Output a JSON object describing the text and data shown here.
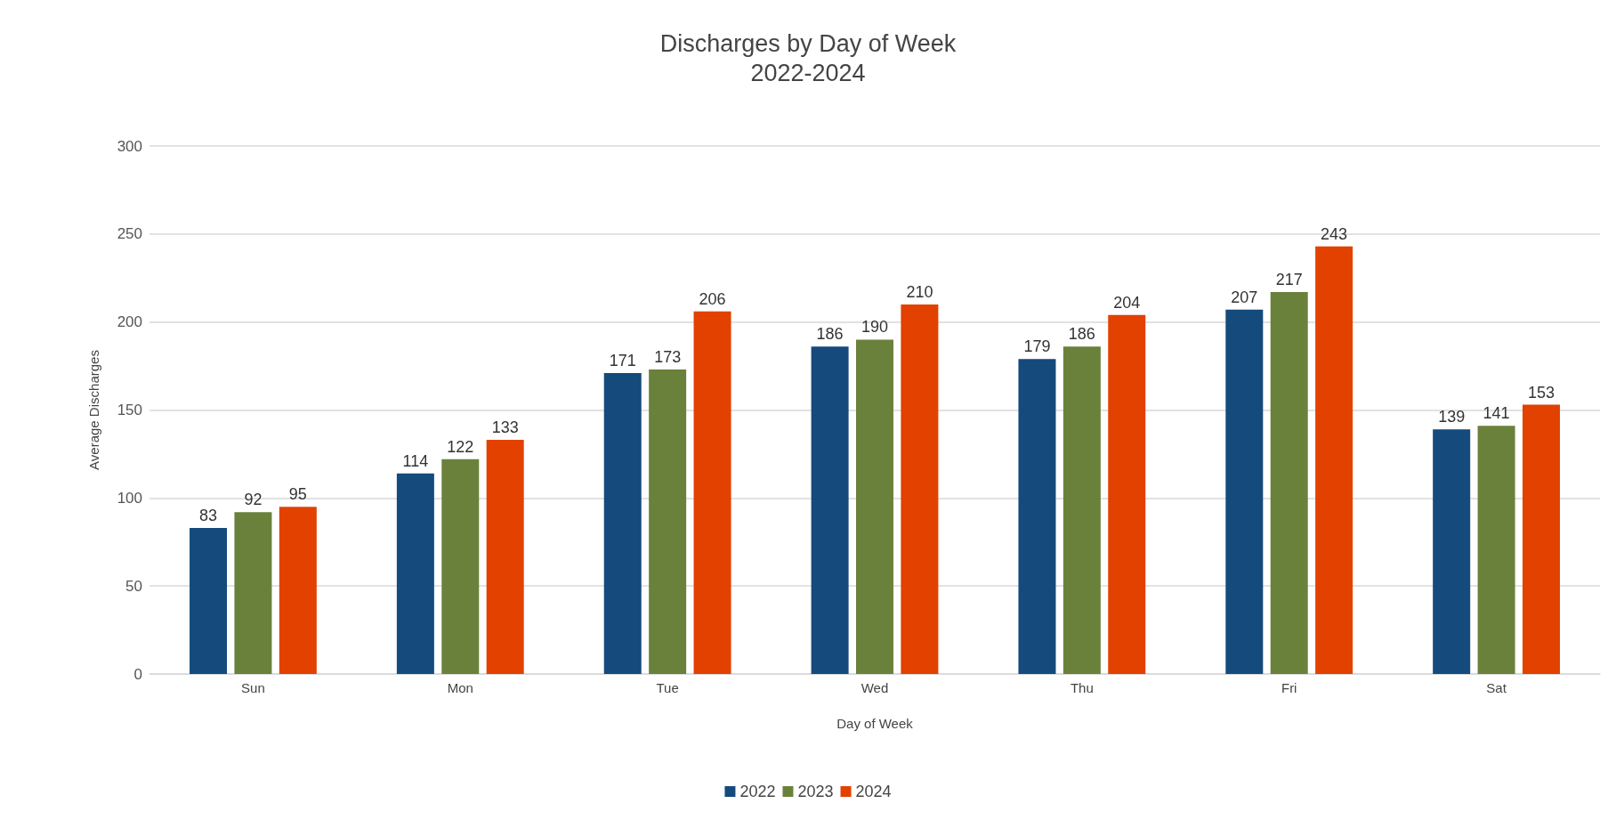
{
  "chart_data": {
    "type": "bar",
    "title": "Discharges by Day of Week",
    "subtitle": "2022-2024",
    "xlabel": "Day of Week",
    "ylabel": "Average Discharges",
    "categories": [
      "Sun",
      "Mon",
      "Tue",
      "Wed",
      "Thu",
      "Fri",
      "Sat"
    ],
    "series": [
      {
        "name": "2022",
        "color": "#154a7c",
        "values": [
          83,
          114,
          171,
          186,
          179,
          207,
          139
        ]
      },
      {
        "name": "2023",
        "color": "#6a813b",
        "values": [
          92,
          122,
          173,
          190,
          186,
          217,
          141
        ]
      },
      {
        "name": "2024",
        "color": "#e24100",
        "values": [
          95,
          133,
          206,
          210,
          204,
          243,
          153
        ]
      }
    ],
    "ylim": [
      0,
      300
    ],
    "yticks": [
      0,
      50,
      100,
      150,
      200,
      250,
      300
    ],
    "grid": "y",
    "legend": "bottom",
    "data_labels": true
  }
}
